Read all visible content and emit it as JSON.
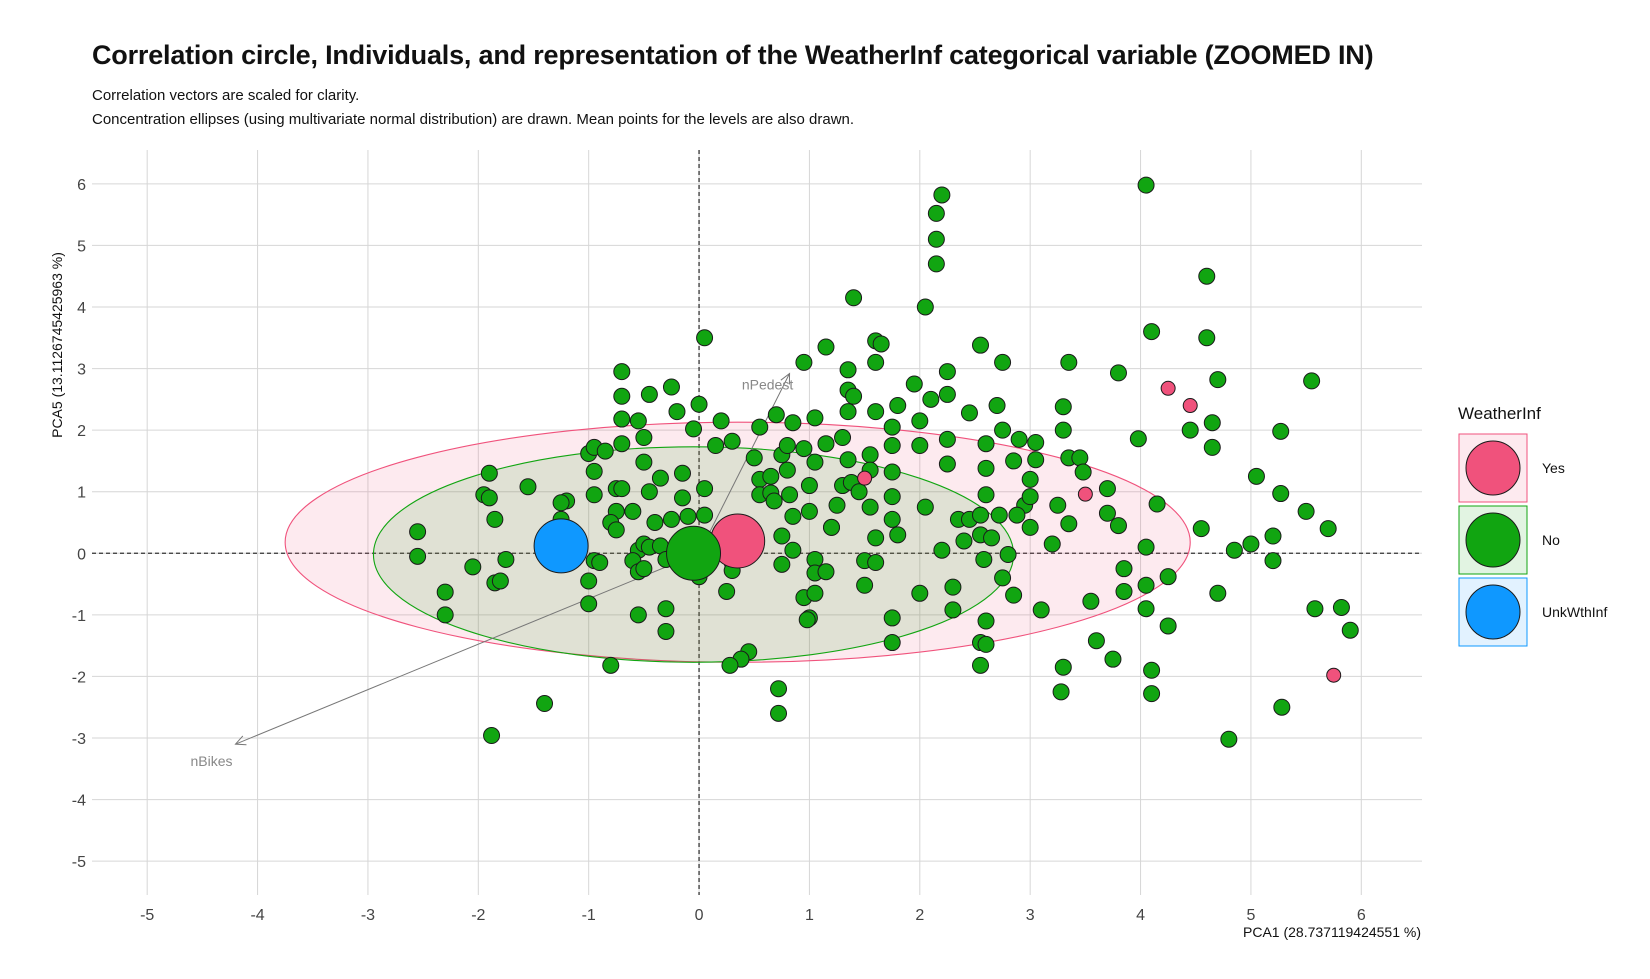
{
  "title": "Correlation circle, Individuals, and representation of the WeatherInf categorical variable (ZOOMED IN)",
  "subtitle_lines": [
    "Correlation vectors are scaled for clarity.",
    "Concentration ellipses (using multivariate normal distribution) are drawn. Mean points for the levels are also drawn."
  ],
  "chart_data": {
    "type": "scatter",
    "xlabel": "PCA1 (28.737119424551 %)",
    "ylabel": "PCA5 (13.1126745425963 %)",
    "xlim": [
      -5.5,
      6.55
    ],
    "ylim": [
      -5.55,
      6.55
    ],
    "xticks": [
      -5,
      -4,
      -3,
      -2,
      -1,
      0,
      1,
      2,
      3,
      4,
      5,
      6
    ],
    "yticks": [
      -5,
      -4,
      -3,
      -2,
      -1,
      0,
      1,
      2,
      3,
      4,
      5,
      6
    ],
    "grid": true,
    "reference_lines": {
      "x": 0,
      "y": 0,
      "style": "dashed"
    },
    "legend": {
      "title": "WeatherInf",
      "placement": "right",
      "entries": [
        {
          "label": "Yes",
          "color": "#f0527c"
        },
        {
          "label": "No",
          "color": "#11a511"
        },
        {
          "label": "UnkWthInf",
          "color": "#0f98ff"
        }
      ]
    },
    "vectors": [
      {
        "name": "nPedest",
        "x": 0.82,
        "y": 2.92
      },
      {
        "name": "nBikes",
        "x": -4.2,
        "y": -3.1
      }
    ],
    "ellipses": [
      {
        "level": "Yes",
        "cx": 0.35,
        "cy": 0.18,
        "rx": 4.1,
        "ry": 1.95
      },
      {
        "level": "No",
        "cx": -0.05,
        "cy": -0.02,
        "rx": 2.9,
        "ry": 1.75
      }
    ],
    "mean_points": [
      {
        "level": "Yes",
        "x": 0.35,
        "y": 0.2
      },
      {
        "level": "No",
        "x": -0.05,
        "y": 0.0
      },
      {
        "level": "UnkWthInf",
        "x": -1.25,
        "y": 0.12
      }
    ],
    "series": [
      {
        "name": "Yes",
        "points": [
          [
            1.5,
            1.22
          ],
          [
            3.5,
            0.96
          ],
          [
            4.25,
            2.68
          ],
          [
            4.45,
            2.4
          ],
          [
            5.75,
            -1.98
          ]
        ]
      },
      {
        "name": "No",
        "points": [
          [
            4.05,
            5.98
          ],
          [
            2.2,
            5.82
          ],
          [
            2.15,
            5.52
          ],
          [
            2.15,
            5.1
          ],
          [
            2.15,
            4.7
          ],
          [
            2.05,
            4.0
          ],
          [
            1.4,
            4.15
          ],
          [
            4.6,
            4.5
          ],
          [
            4.1,
            3.6
          ],
          [
            4.6,
            3.5
          ],
          [
            1.6,
            3.45
          ],
          [
            1.65,
            3.4
          ],
          [
            1.15,
            3.35
          ],
          [
            2.55,
            3.38
          ],
          [
            0.05,
            3.5
          ],
          [
            0.95,
            3.1
          ],
          [
            1.35,
            2.98
          ],
          [
            1.6,
            3.1
          ],
          [
            2.75,
            3.1
          ],
          [
            3.35,
            3.1
          ],
          [
            3.8,
            2.93
          ],
          [
            -0.7,
            2.95
          ],
          [
            -0.25,
            2.7
          ],
          [
            -0.7,
            2.55
          ],
          [
            -0.45,
            2.58
          ],
          [
            1.95,
            2.75
          ],
          [
            2.25,
            2.95
          ],
          [
            1.35,
            2.65
          ],
          [
            1.4,
            2.55
          ],
          [
            2.1,
            2.5
          ],
          [
            2.25,
            2.58
          ],
          [
            4.7,
            2.82
          ],
          [
            5.55,
            2.8
          ],
          [
            -0.7,
            2.18
          ],
          [
            -0.55,
            2.15
          ],
          [
            -0.2,
            2.3
          ],
          [
            0.0,
            2.42
          ],
          [
            0.2,
            2.15
          ],
          [
            0.7,
            2.25
          ],
          [
            1.05,
            2.2
          ],
          [
            1.35,
            2.3
          ],
          [
            1.6,
            2.3
          ],
          [
            1.8,
            2.4
          ],
          [
            2.0,
            2.15
          ],
          [
            2.45,
            2.28
          ],
          [
            2.7,
            2.4
          ],
          [
            3.3,
            2.38
          ],
          [
            -0.5,
            1.88
          ],
          [
            -0.05,
            2.02
          ],
          [
            0.3,
            1.82
          ],
          [
            0.55,
            2.05
          ],
          [
            0.85,
            2.12
          ],
          [
            1.3,
            1.88
          ],
          [
            1.75,
            2.05
          ],
          [
            2.25,
            1.85
          ],
          [
            2.75,
            2.0
          ],
          [
            2.9,
            1.85
          ],
          [
            3.05,
            1.8
          ],
          [
            3.3,
            2.0
          ],
          [
            3.98,
            1.86
          ],
          [
            4.45,
            2.0
          ],
          [
            4.65,
            2.12
          ],
          [
            5.27,
            1.98
          ],
          [
            -1.0,
            1.62
          ],
          [
            -0.95,
            1.72
          ],
          [
            -0.85,
            1.66
          ],
          [
            -0.7,
            1.78
          ],
          [
            0.15,
            1.75
          ],
          [
            0.5,
            1.55
          ],
          [
            0.75,
            1.6
          ],
          [
            0.8,
            1.75
          ],
          [
            0.95,
            1.7
          ],
          [
            1.05,
            1.48
          ],
          [
            1.15,
            1.78
          ],
          [
            1.35,
            1.52
          ],
          [
            1.55,
            1.6
          ],
          [
            1.55,
            1.35
          ],
          [
            1.75,
            1.75
          ],
          [
            2.0,
            1.75
          ],
          [
            2.25,
            1.45
          ],
          [
            2.6,
            1.78
          ],
          [
            2.85,
            1.5
          ],
          [
            3.05,
            1.52
          ],
          [
            3.35,
            1.55
          ],
          [
            3.45,
            1.55
          ],
          [
            4.65,
            1.72
          ],
          [
            -0.5,
            1.48
          ],
          [
            -0.95,
            1.33
          ],
          [
            -1.9,
            1.3
          ],
          [
            -1.55,
            1.08
          ],
          [
            -1.95,
            0.95
          ],
          [
            -1.9,
            0.9
          ],
          [
            -0.75,
            1.05
          ],
          [
            -0.7,
            1.05
          ],
          [
            -0.35,
            1.22
          ],
          [
            -0.15,
            1.3
          ],
          [
            0.05,
            1.05
          ],
          [
            0.55,
            1.2
          ],
          [
            0.65,
            1.25
          ],
          [
            0.8,
            1.35
          ],
          [
            1.0,
            1.1
          ],
          [
            1.3,
            1.1
          ],
          [
            1.38,
            1.15
          ],
          [
            1.45,
            1.0
          ],
          [
            1.75,
            1.32
          ],
          [
            2.6,
            1.38
          ],
          [
            3.0,
            1.2
          ],
          [
            3.48,
            1.32
          ],
          [
            3.7,
            1.05
          ],
          [
            5.05,
            1.25
          ],
          [
            -1.2,
            0.85
          ],
          [
            -1.25,
            0.82
          ],
          [
            -0.95,
            0.95
          ],
          [
            -0.75,
            0.68
          ],
          [
            -0.45,
            1.0
          ],
          [
            -0.15,
            0.9
          ],
          [
            0.55,
            0.95
          ],
          [
            0.65,
            0.98
          ],
          [
            0.68,
            0.85
          ],
          [
            0.82,
            0.95
          ],
          [
            1.0,
            0.68
          ],
          [
            1.25,
            0.78
          ],
          [
            1.55,
            0.75
          ],
          [
            1.75,
            0.92
          ],
          [
            2.05,
            0.75
          ],
          [
            2.6,
            0.95
          ],
          [
            2.95,
            0.78
          ],
          [
            3.0,
            0.92
          ],
          [
            3.25,
            0.78
          ],
          [
            3.7,
            0.65
          ],
          [
            4.15,
            0.8
          ],
          [
            5.27,
            0.97
          ],
          [
            5.5,
            0.68
          ],
          [
            -1.85,
            0.55
          ],
          [
            -1.25,
            0.55
          ],
          [
            -0.8,
            0.5
          ],
          [
            -0.6,
            0.68
          ],
          [
            -0.4,
            0.5
          ],
          [
            -0.25,
            0.55
          ],
          [
            -0.1,
            0.6
          ],
          [
            0.05,
            0.62
          ],
          [
            0.85,
            0.6
          ],
          [
            1.2,
            0.42
          ],
          [
            1.75,
            0.55
          ],
          [
            2.35,
            0.55
          ],
          [
            2.45,
            0.55
          ],
          [
            2.55,
            0.62
          ],
          [
            2.72,
            0.62
          ],
          [
            2.88,
            0.62
          ],
          [
            3.0,
            0.42
          ],
          [
            3.35,
            0.48
          ],
          [
            3.8,
            0.45
          ],
          [
            4.55,
            0.4
          ],
          [
            5.7,
            0.4
          ],
          [
            -2.55,
            0.35
          ],
          [
            -0.75,
            0.38
          ],
          [
            -0.55,
            0.05
          ],
          [
            -0.5,
            0.15
          ],
          [
            -0.45,
            0.1
          ],
          [
            -0.35,
            0.12
          ],
          [
            0.75,
            0.28
          ],
          [
            0.85,
            0.05
          ],
          [
            1.2,
            0.42
          ],
          [
            1.6,
            0.25
          ],
          [
            1.8,
            0.3
          ],
          [
            2.4,
            0.2
          ],
          [
            2.55,
            0.3
          ],
          [
            2.65,
            0.25
          ],
          [
            3.2,
            0.15
          ],
          [
            4.05,
            0.1
          ],
          [
            4.85,
            0.05
          ],
          [
            5.0,
            0.15
          ],
          [
            5.2,
            0.28
          ],
          [
            -2.55,
            -0.05
          ],
          [
            -1.75,
            -0.1
          ],
          [
            -1.35,
            -0.05
          ],
          [
            -0.95,
            -0.12
          ],
          [
            -0.9,
            -0.15
          ],
          [
            -0.6,
            -0.12
          ],
          [
            -0.3,
            -0.1
          ],
          [
            0.3,
            -0.15
          ],
          [
            0.75,
            -0.18
          ],
          [
            1.05,
            -0.1
          ],
          [
            1.5,
            -0.12
          ],
          [
            1.6,
            -0.15
          ],
          [
            2.2,
            0.05
          ],
          [
            2.58,
            -0.1
          ],
          [
            2.8,
            -0.02
          ],
          [
            5.2,
            -0.12
          ],
          [
            -2.05,
            -0.22
          ],
          [
            -1.85,
            -0.48
          ],
          [
            -1.8,
            -0.45
          ],
          [
            -1.0,
            -0.45
          ],
          [
            -0.55,
            -0.3
          ],
          [
            -0.5,
            -0.25
          ],
          [
            0.0,
            -0.38
          ],
          [
            0.3,
            -0.28
          ],
          [
            0.25,
            -0.62
          ],
          [
            1.05,
            -0.32
          ],
          [
            1.15,
            -0.3
          ],
          [
            1.5,
            -0.52
          ],
          [
            2.0,
            -0.65
          ],
          [
            2.3,
            -0.55
          ],
          [
            2.75,
            -0.4
          ],
          [
            2.85,
            -0.68
          ],
          [
            3.55,
            -0.78
          ],
          [
            3.85,
            -0.25
          ],
          [
            4.25,
            -0.38
          ],
          [
            4.7,
            -0.65
          ],
          [
            -2.3,
            -0.63
          ],
          [
            -1.0,
            -0.82
          ],
          [
            -0.55,
            -1.0
          ],
          [
            -0.3,
            -0.9
          ],
          [
            0.95,
            -0.72
          ],
          [
            1.05,
            -0.65
          ],
          [
            1.0,
            -1.05
          ],
          [
            0.98,
            -1.08
          ],
          [
            1.75,
            -1.05
          ],
          [
            2.3,
            -0.92
          ],
          [
            2.6,
            -1.1
          ],
          [
            3.1,
            -0.92
          ],
          [
            3.85,
            -0.62
          ],
          [
            4.05,
            -0.52
          ],
          [
            4.05,
            -0.9
          ],
          [
            4.25,
            -1.18
          ],
          [
            5.58,
            -0.9
          ],
          [
            5.82,
            -0.88
          ],
          [
            5.9,
            -1.25
          ],
          [
            -2.3,
            -1.0
          ],
          [
            -0.3,
            -1.27
          ],
          [
            0.45,
            -1.6
          ],
          [
            0.38,
            -1.72
          ],
          [
            0.28,
            -1.82
          ],
          [
            -0.8,
            -1.82
          ],
          [
            1.75,
            -1.45
          ],
          [
            2.55,
            -1.45
          ],
          [
            2.6,
            -1.48
          ],
          [
            3.6,
            -1.42
          ],
          [
            3.75,
            -1.72
          ],
          [
            2.55,
            -1.82
          ],
          [
            3.3,
            -1.85
          ],
          [
            4.1,
            -1.9
          ],
          [
            0.72,
            -2.2
          ],
          [
            3.28,
            -2.25
          ],
          [
            4.1,
            -2.28
          ],
          [
            -1.4,
            -2.44
          ],
          [
            0.72,
            -2.6
          ],
          [
            5.28,
            -2.5
          ],
          [
            -1.88,
            -2.96
          ],
          [
            4.8,
            -3.02
          ]
        ]
      }
    ]
  }
}
